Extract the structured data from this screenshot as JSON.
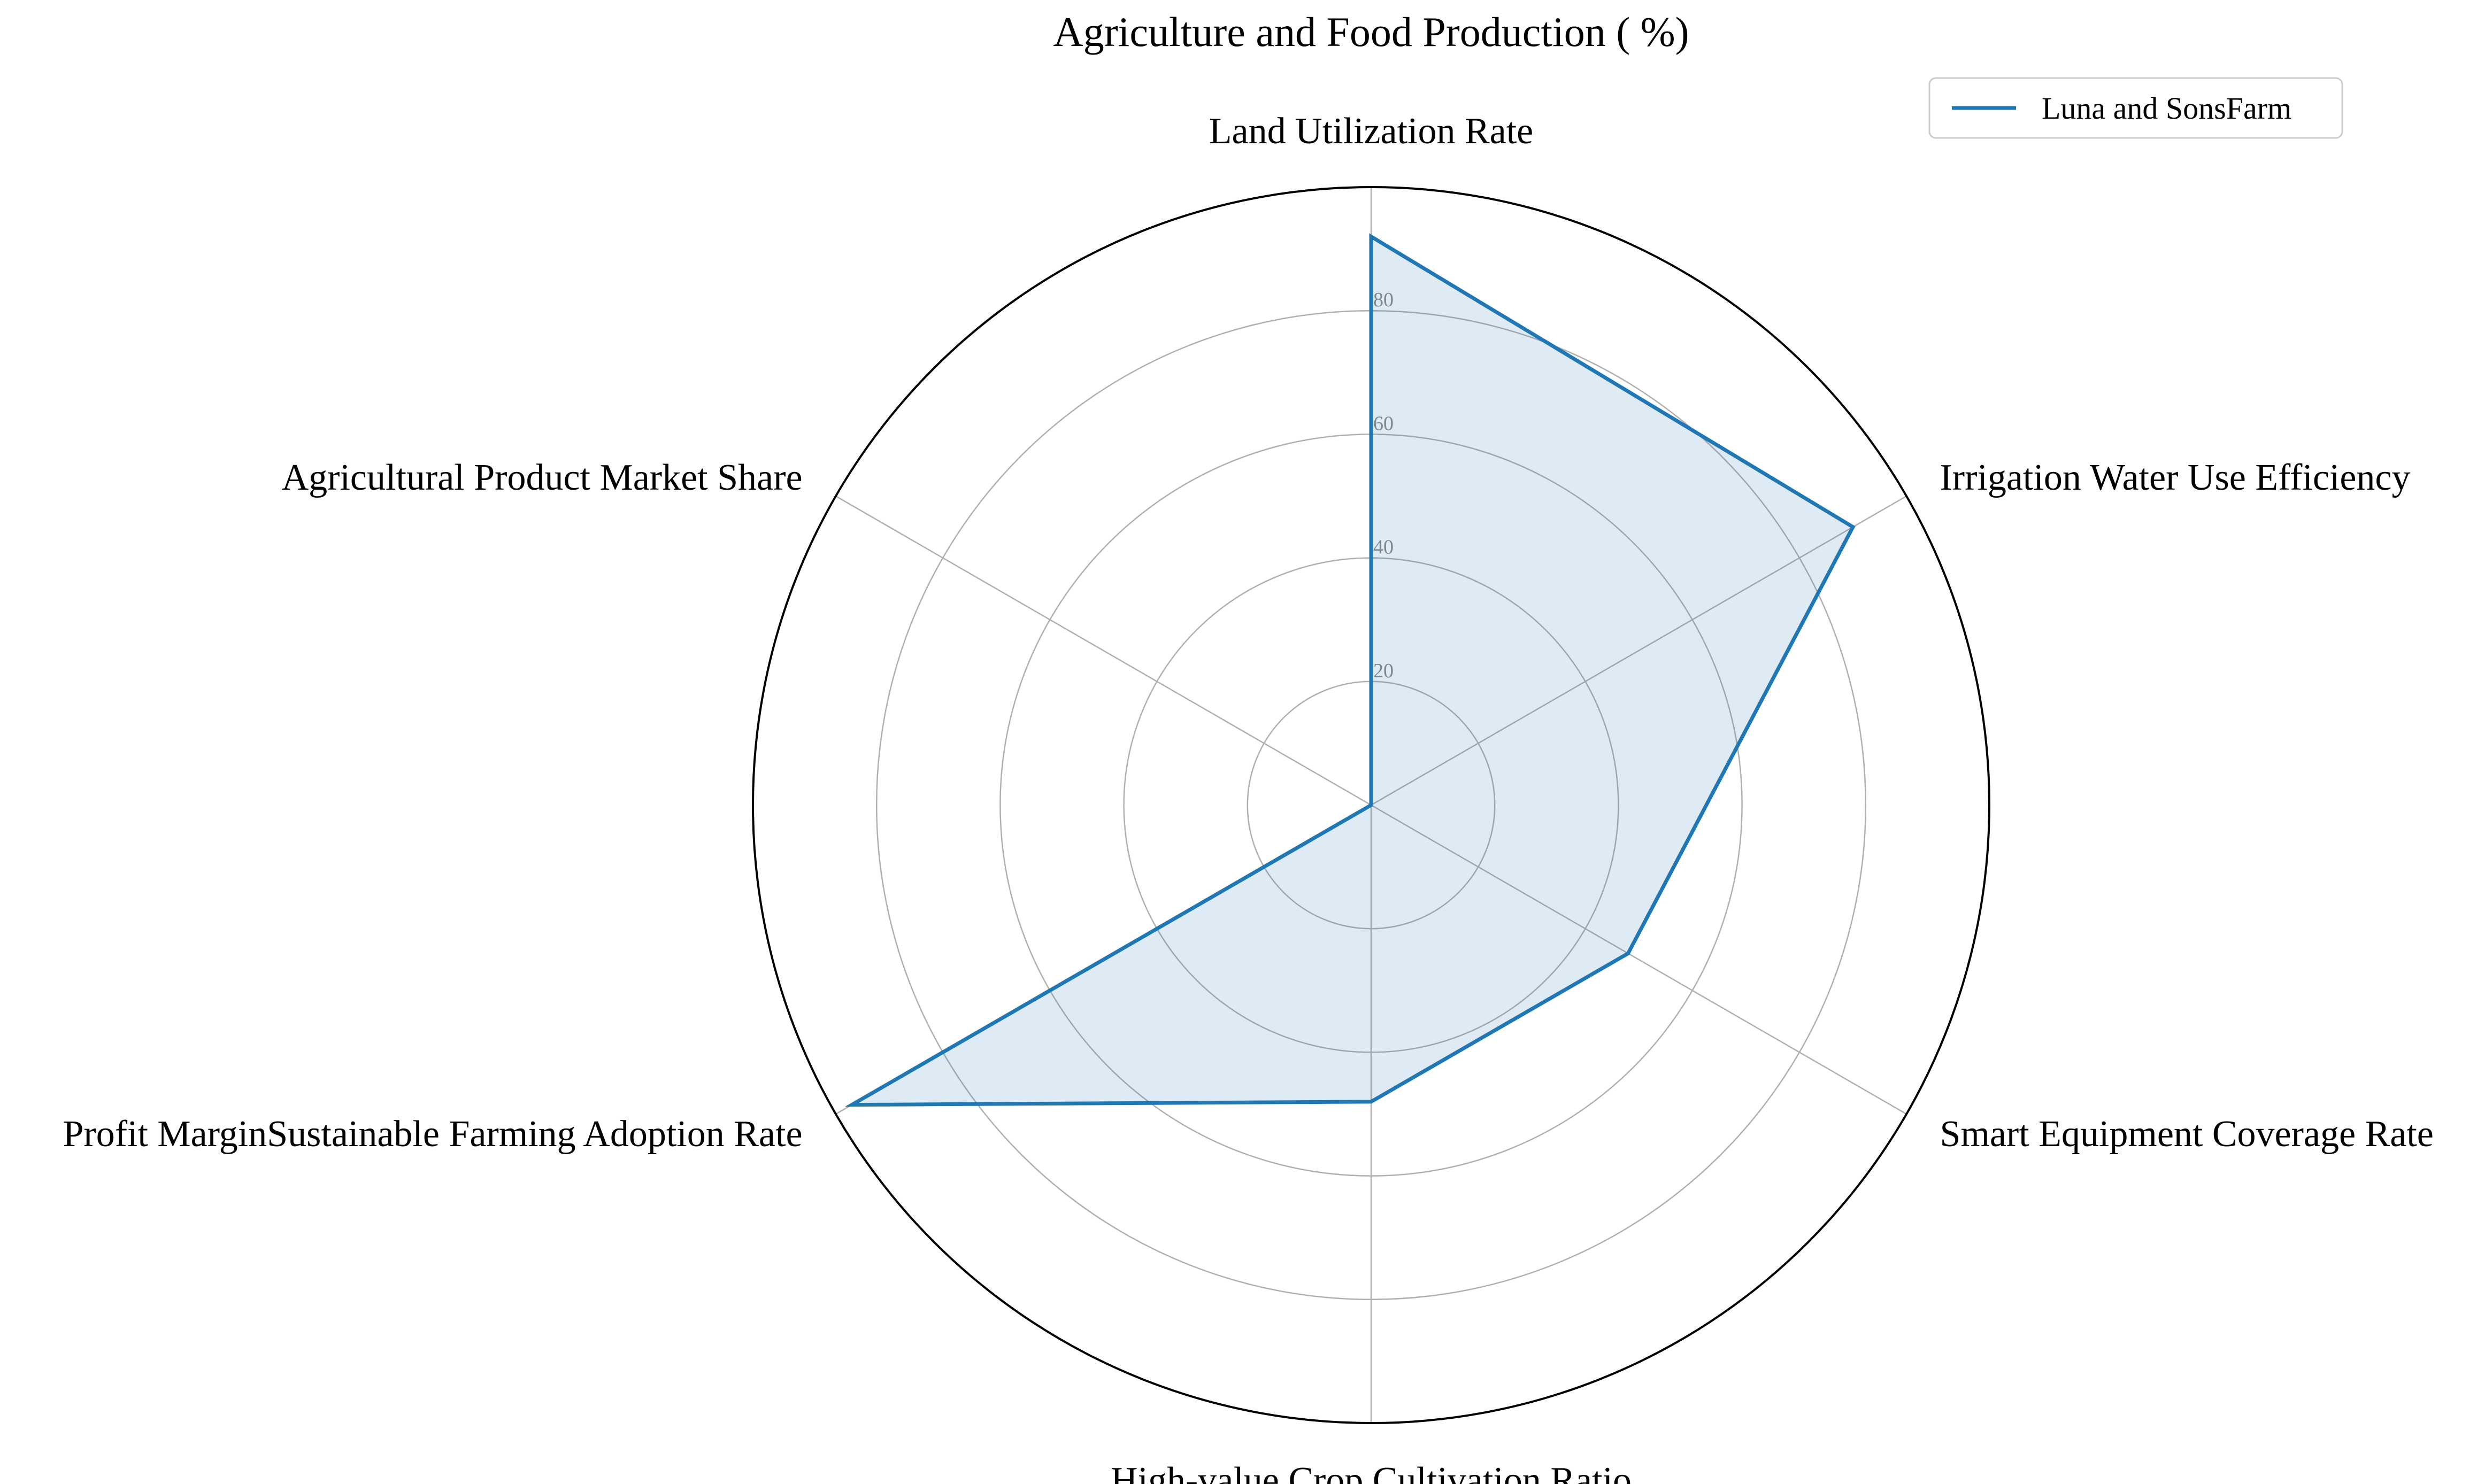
{
  "chart_data": {
    "type": "radar",
    "title": "Agriculture and Food Production ( %)",
    "axes": [
      "Land Utilization Rate",
      "Irrigation Water Use Efficiency",
      "Smart Equipment Coverage Rate",
      "High-value Crop Cultivation Ratio",
      "Profit MarginSustainable Farming Adoption Rate",
      "Agricultural Product Market Share"
    ],
    "series": [
      {
        "name": "Luna and SonsFarm",
        "values": [
          92,
          90,
          48,
          48,
          97,
          0
        ]
      }
    ],
    "rlim": [
      0,
      100
    ],
    "r_ticks": [
      20,
      40,
      60,
      80
    ],
    "r_tick_labels": [
      "20",
      "40",
      "60",
      "80"
    ],
    "grid": true,
    "legend_position": "top-right",
    "colors": {
      "series_line": "#1f77b4",
      "series_fill": "#1f77b4",
      "grid": "#b0b0b0",
      "outer_ring": "#000000",
      "tick_label": "#8a8a8a",
      "legend_border": "#cccccc"
    }
  }
}
